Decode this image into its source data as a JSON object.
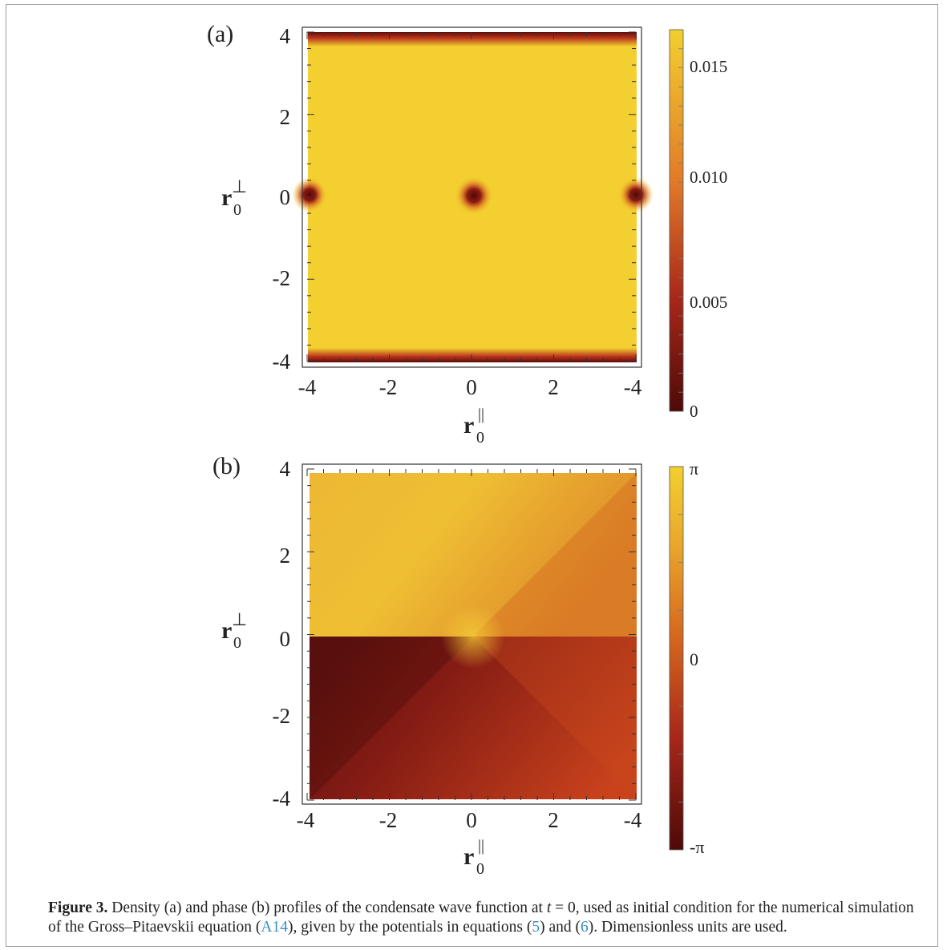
{
  "figure": {
    "panels": [
      {
        "label": "(a)",
        "quantity": "density",
        "x_ticks": [
          "-4",
          "-2",
          "0",
          "2",
          "-4"
        ],
        "y_ticks": [
          "4",
          "2",
          "0",
          "-2",
          "-4"
        ],
        "colorbar_ticks": [
          "0.015",
          "0.010",
          "0.005",
          "0"
        ]
      },
      {
        "label": "(b)",
        "quantity": "phase",
        "x_ticks": [
          "-4",
          "-2",
          "0",
          "2",
          "-4"
        ],
        "y_ticks": [
          "4",
          "2",
          "0",
          "-2",
          "-4"
        ],
        "colorbar_ticks": [
          "π",
          "0",
          "-π"
        ]
      }
    ],
    "colors": {
      "yellow": "#f3cf2f",
      "orange": "#e3922a",
      "red": "#b8321c",
      "dark": "#5a0e0b"
    }
  },
  "caption": {
    "prefix": "Figure 3.",
    "part1": " Density (a) and phase (b) profiles of the condensate wave function at ",
    "math": "t",
    "eq": " = 0",
    "part2": ", used as initial condition for the numerical simulation of the Gross–Pitaevskii equation (",
    "ref1": "A14",
    "part3": "), given by the potentials in equations (",
    "ref2": "5",
    "part4": ") and (",
    "ref3": "6",
    "part5": "). Dimensionless units are used."
  }
}
